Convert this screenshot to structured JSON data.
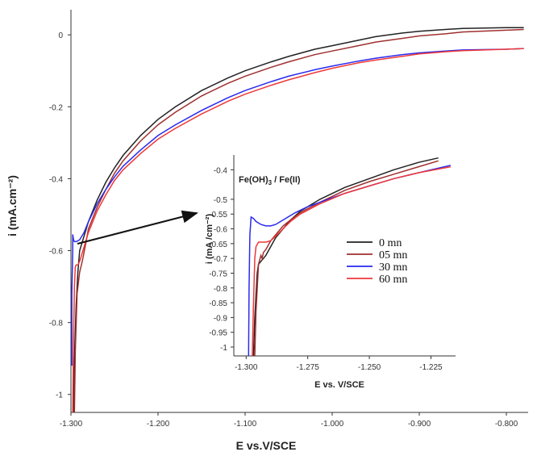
{
  "chart_data": [
    {
      "type": "line",
      "xlabel": "E vs.V/SCE",
      "ylabel": "i (mA.cm⁻²)",
      "xlim": [
        -1.3,
        -0.775
      ],
      "ylim": [
        -1.05,
        0.07
      ],
      "xticks": [
        -1.3,
        -1.2,
        -1.1,
        -1.0,
        -0.9,
        -0.8
      ],
      "xtick_labels": [
        "-1.300",
        "-1.200",
        "-1.100",
        "-1.000",
        "-0.900",
        "-0.800"
      ],
      "yticks": [
        0,
        -0.2,
        -0.4,
        -0.6,
        -0.8,
        -1.0
      ],
      "ytick_labels": [
        "0",
        "-0.2",
        "-0.4",
        "-0.6",
        "-0.8",
        "-1"
      ],
      "series": [
        {
          "name": "0 mn",
          "color": "#222222",
          "x": [
            -1.297,
            -1.296,
            -1.294,
            -1.292,
            -1.29,
            -1.285,
            -1.28,
            -1.27,
            -1.26,
            -1.25,
            -1.24,
            -1.22,
            -1.2,
            -1.18,
            -1.15,
            -1.12,
            -1.1,
            -1.07,
            -1.05,
            -1.02,
            -1.0,
            -0.97,
            -0.95,
            -0.92,
            -0.9,
            -0.87,
            -0.85,
            -0.8,
            -0.78
          ],
          "y": [
            -1.05,
            -0.9,
            -0.75,
            -0.66,
            -0.6,
            -0.56,
            -0.52,
            -0.46,
            -0.41,
            -0.37,
            -0.335,
            -0.28,
            -0.235,
            -0.2,
            -0.155,
            -0.12,
            -0.1,
            -0.075,
            -0.06,
            -0.04,
            -0.03,
            -0.015,
            -0.005,
            0.005,
            0.01,
            0.015,
            0.018,
            0.02,
            0.02
          ]
        },
        {
          "name": "05 mn",
          "color": "#a03030",
          "x": [
            -1.296,
            -1.295,
            -1.293,
            -1.29,
            -1.287,
            -1.283,
            -1.28,
            -1.27,
            -1.26,
            -1.25,
            -1.24,
            -1.22,
            -1.2,
            -1.18,
            -1.15,
            -1.12,
            -1.1,
            -1.07,
            -1.05,
            -1.02,
            -1.0,
            -0.97,
            -0.95,
            -0.92,
            -0.9,
            -0.87,
            -0.85,
            -0.8,
            -0.78
          ],
          "y": [
            -1.05,
            -0.88,
            -0.72,
            -0.66,
            -0.63,
            -0.58,
            -0.54,
            -0.48,
            -0.43,
            -0.385,
            -0.35,
            -0.295,
            -0.25,
            -0.215,
            -0.17,
            -0.135,
            -0.115,
            -0.09,
            -0.075,
            -0.055,
            -0.045,
            -0.03,
            -0.02,
            -0.01,
            -0.003,
            0.003,
            0.008,
            0.013,
            0.015
          ]
        },
        {
          "name": "30 mn",
          "color": "#2a2aee",
          "x": [
            -1.299,
            -1.299,
            -1.298,
            -1.298,
            -1.297,
            -1.296,
            -1.294,
            -1.29,
            -1.285,
            -1.28,
            -1.27,
            -1.26,
            -1.25,
            -1.24,
            -1.22,
            -1.2,
            -1.18,
            -1.15,
            -1.12,
            -1.1,
            -1.07,
            -1.05,
            -1.02,
            -1.0,
            -0.97,
            -0.95,
            -0.92,
            -0.9,
            -0.87,
            -0.85,
            -0.8,
            -0.78
          ],
          "y": [
            -0.92,
            -0.72,
            -0.6,
            -0.555,
            -0.57,
            -0.575,
            -0.575,
            -0.57,
            -0.55,
            -0.52,
            -0.47,
            -0.43,
            -0.395,
            -0.365,
            -0.32,
            -0.28,
            -0.25,
            -0.21,
            -0.175,
            -0.155,
            -0.13,
            -0.115,
            -0.097,
            -0.087,
            -0.073,
            -0.065,
            -0.055,
            -0.05,
            -0.045,
            -0.042,
            -0.04,
            -0.038
          ]
        },
        {
          "name": "60 mn",
          "color": "#ee3838",
          "x": [
            -1.298,
            -1.297,
            -1.296,
            -1.295,
            -1.294,
            -1.292,
            -1.29,
            -1.285,
            -1.28,
            -1.27,
            -1.26,
            -1.25,
            -1.24,
            -1.22,
            -1.2,
            -1.18,
            -1.15,
            -1.12,
            -1.1,
            -1.07,
            -1.05,
            -1.02,
            -1.0,
            -0.97,
            -0.95,
            -0.92,
            -0.9,
            -0.87,
            -0.85,
            -0.8,
            -0.78
          ],
          "y": [
            -1.05,
            -0.85,
            -0.7,
            -0.645,
            -0.64,
            -0.64,
            -0.63,
            -0.59,
            -0.55,
            -0.49,
            -0.445,
            -0.405,
            -0.375,
            -0.33,
            -0.29,
            -0.26,
            -0.22,
            -0.185,
            -0.165,
            -0.14,
            -0.125,
            -0.105,
            -0.093,
            -0.078,
            -0.07,
            -0.06,
            -0.053,
            -0.047,
            -0.044,
            -0.04,
            -0.038
          ]
        }
      ]
    },
    {
      "type": "line",
      "title_html_note": "",
      "annotation": "Fe(OH)3 / Fe(II)",
      "annotation_parts": [
        "Fe(OH)",
        "3",
        " / Fe(II)"
      ],
      "xlabel": "E vs. V/SCE",
      "ylabel": "i (mA /cm⁻²)",
      "xlim": [
        -1.305,
        -1.215
      ],
      "ylim": [
        -1.03,
        -0.35
      ],
      "xticks": [
        -1.3,
        -1.275,
        -1.25,
        -1.225
      ],
      "xtick_labels": [
        "-1.300",
        "-1.275",
        "-1.250",
        "-1.225"
      ],
      "yticks": [
        -0.4,
        -0.5,
        -0.55,
        -0.6,
        -0.65,
        -0.7,
        -0.75,
        -0.8,
        -0.85,
        -0.9,
        -0.95,
        -1.0
      ],
      "ytick_labels": [
        "-0.4",
        "-0.5",
        "-0.55",
        "-0.6",
        "-0.65",
        "-0.7",
        "-0.75",
        "-0.8",
        "-0.85",
        "-0.9",
        "-0.95",
        "-1"
      ],
      "series": [
        {
          "name": "0 mn",
          "color": "#222222",
          "x": [
            -1.297,
            -1.2965,
            -1.2955,
            -1.295,
            -1.294,
            -1.293,
            -1.292,
            -1.29,
            -1.288,
            -1.285,
            -1.282,
            -1.278,
            -1.27,
            -1.26,
            -1.25,
            -1.24,
            -1.23,
            -1.222
          ],
          "y": [
            -1.03,
            -0.9,
            -0.75,
            -0.72,
            -0.71,
            -0.7,
            -0.69,
            -0.66,
            -0.63,
            -0.6,
            -0.57,
            -0.54,
            -0.5,
            -0.46,
            -0.43,
            -0.4,
            -0.375,
            -0.36
          ]
        },
        {
          "name": "05 mn",
          "color": "#a03030",
          "x": [
            -1.2965,
            -1.296,
            -1.295,
            -1.294,
            -1.2935,
            -1.293,
            -1.292,
            -1.29,
            -1.288,
            -1.285,
            -1.282,
            -1.278,
            -1.27,
            -1.26,
            -1.25,
            -1.24,
            -1.23,
            -1.222
          ],
          "y": [
            -1.03,
            -0.88,
            -0.72,
            -0.69,
            -0.7,
            -0.68,
            -0.67,
            -0.64,
            -0.62,
            -0.59,
            -0.57,
            -0.545,
            -0.51,
            -0.47,
            -0.44,
            -0.415,
            -0.39,
            -0.37
          ]
        },
        {
          "name": "30 mn",
          "color": "#2a2aee",
          "x": [
            -1.299,
            -1.2988,
            -1.2985,
            -1.298,
            -1.297,
            -1.296,
            -1.294,
            -1.292,
            -1.29,
            -1.288,
            -1.286,
            -1.283,
            -1.28,
            -1.275,
            -1.27,
            -1.26,
            -1.25,
            -1.24,
            -1.23,
            -1.217
          ],
          "y": [
            -1.03,
            -0.8,
            -0.62,
            -0.56,
            -0.565,
            -0.575,
            -0.585,
            -0.59,
            -0.59,
            -0.585,
            -0.575,
            -0.56,
            -0.545,
            -0.525,
            -0.51,
            -0.48,
            -0.455,
            -0.43,
            -0.41,
            -0.385
          ]
        },
        {
          "name": "60 mn",
          "color": "#ee3838",
          "x": [
            -1.2975,
            -1.297,
            -1.2965,
            -1.296,
            -1.295,
            -1.294,
            -1.292,
            -1.29,
            -1.288,
            -1.285,
            -1.282,
            -1.278,
            -1.27,
            -1.26,
            -1.25,
            -1.24,
            -1.23,
            -1.217
          ],
          "y": [
            -1.03,
            -0.85,
            -0.7,
            -0.66,
            -0.645,
            -0.645,
            -0.645,
            -0.64,
            -0.625,
            -0.6,
            -0.575,
            -0.55,
            -0.515,
            -0.48,
            -0.455,
            -0.43,
            -0.41,
            -0.39
          ]
        }
      ]
    }
  ],
  "legend": {
    "entries": [
      "0 mn",
      "05 mn",
      "30 mn",
      "60 mn"
    ],
    "colors": [
      "#222222",
      "#a03030",
      "#2a2aee",
      "#ee3838"
    ]
  }
}
